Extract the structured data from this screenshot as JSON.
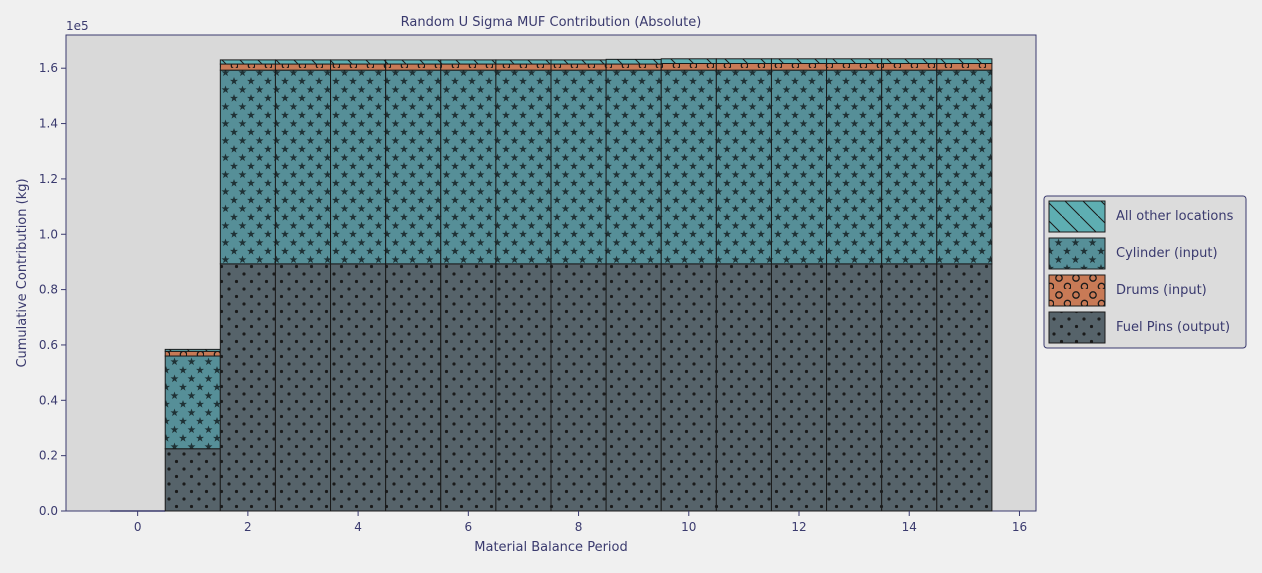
{
  "chart_data": {
    "type": "bar",
    "stacked": true,
    "title": "Random U Sigma MUF Contribution (Absolute)",
    "xlabel": "Material Balance Period",
    "ylabel": "Cumulative Contribution (kg)",
    "y_offset_label": "1e5",
    "xlim": [
      -1.3,
      16.3
    ],
    "ylim": [
      0,
      1.72
    ],
    "x_ticks": [
      0,
      2,
      4,
      6,
      8,
      10,
      12,
      14,
      16
    ],
    "x_tick_labels": [
      "0",
      "2",
      "4",
      "6",
      "8",
      "10",
      "12",
      "14",
      "16"
    ],
    "y_ticks": [
      0.0,
      0.2,
      0.4,
      0.6,
      0.8,
      1.0,
      1.2,
      1.4,
      1.6
    ],
    "y_tick_labels": [
      "0.0",
      "0.2",
      "0.4",
      "0.6",
      "0.8",
      "1.0",
      "1.2",
      "1.4",
      "1.6"
    ],
    "grid": false,
    "legend_position": "outside-right",
    "categories": [
      0,
      1,
      2,
      3,
      4,
      5,
      6,
      7,
      8,
      9,
      10,
      11,
      12,
      13,
      14,
      15
    ],
    "series": [
      {
        "name": "Fuel Pins (output)",
        "color": "#56636a",
        "pattern": "dots",
        "values": [
          0.0,
          0.225,
          0.893,
          0.893,
          0.893,
          0.893,
          0.893,
          0.893,
          0.893,
          0.893,
          0.893,
          0.893,
          0.893,
          0.893,
          0.893,
          0.893
        ]
      },
      {
        "name": "Drums (input)",
        "color": "#c87a56",
        "pattern": "circles",
        "values": [
          0.0,
          0.0,
          0.0,
          0.0,
          0.0,
          0.0,
          0.0,
          0.0,
          0.0,
          0.0,
          0.0,
          0.0,
          0.0,
          0.0,
          0.0,
          0.0
        ]
      },
      {
        "name": "Cylinder (input)",
        "color": "#568f98",
        "pattern": "stars",
        "values": [
          0.0,
          0.335,
          0.7,
          0.7,
          0.7,
          0.7,
          0.7,
          0.7,
          0.7,
          0.7,
          0.7,
          0.7,
          0.7,
          0.7,
          0.7,
          0.7
        ]
      },
      {
        "name": "Drums (input)",
        "color": "#c87a56",
        "pattern": "circles",
        "values": [
          0.0,
          0.017,
          0.022,
          0.022,
          0.022,
          0.022,
          0.022,
          0.022,
          0.022,
          0.022,
          0.024,
          0.024,
          0.024,
          0.024,
          0.024,
          0.024
        ]
      },
      {
        "name": "All other locations",
        "color": "#5eaeb2",
        "pattern": "diagonal",
        "values": [
          0.0,
          0.007,
          0.015,
          0.015,
          0.015,
          0.015,
          0.015,
          0.015,
          0.015,
          0.017,
          0.017,
          0.017,
          0.017,
          0.017,
          0.017,
          0.017
        ]
      }
    ],
    "legend": [
      {
        "label": "All other locations",
        "color": "#5eaeb2",
        "pattern": "diagonal"
      },
      {
        "label": "Cylinder (input)",
        "color": "#568f98",
        "pattern": "stars"
      },
      {
        "label": "Drums (input)",
        "color": "#c87a56",
        "pattern": "circles"
      },
      {
        "label": "Fuel Pins (output)",
        "color": "#56636a",
        "pattern": "dots"
      }
    ],
    "colors": {
      "plot_background": "#d9d9d9",
      "page_background": "#f0f0f0",
      "text": "#3a3a6e",
      "axis": "#3a3a6e",
      "bar_edge": "#1a1a1a"
    }
  }
}
